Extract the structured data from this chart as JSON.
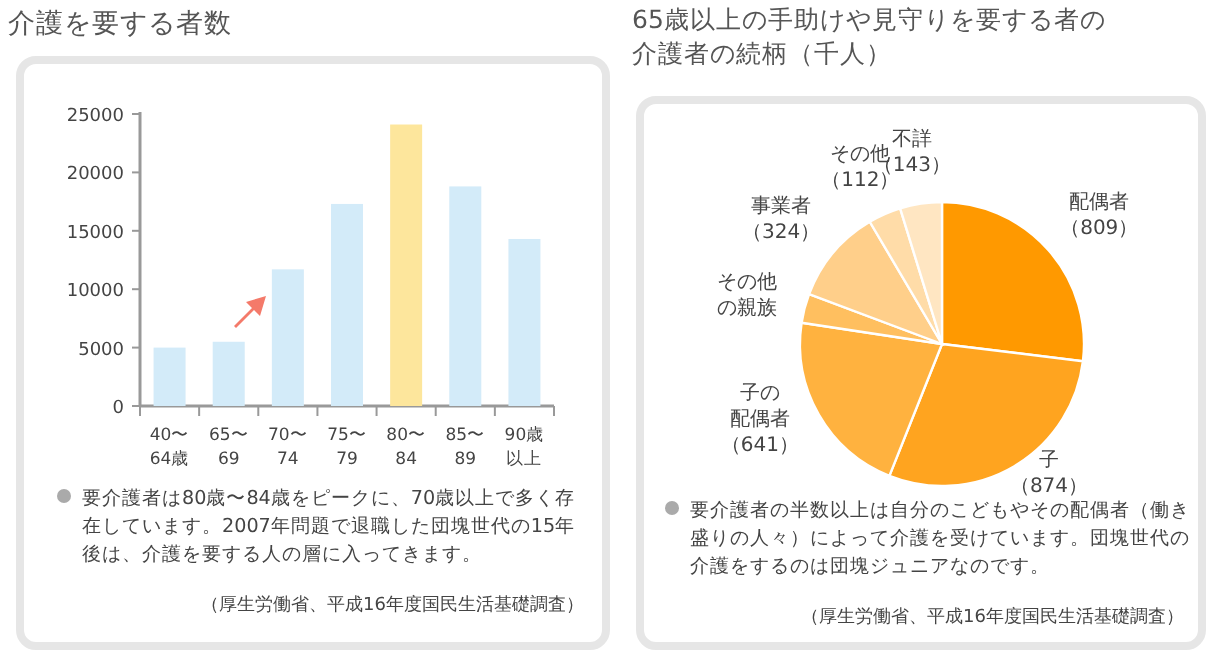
{
  "chart_data": [
    {
      "type": "bar",
      "title": "介護を要する者数",
      "categories": [
        "40〜64歳",
        "65〜69",
        "70〜74",
        "75〜79",
        "80〜84",
        "85〜89",
        "90歳以上"
      ],
      "values": [
        5000,
        5500,
        11700,
        17300,
        24100,
        18800,
        14300
      ],
      "colors": [
        "#d3ebf9",
        "#d3ebf9",
        "#d3ebf9",
        "#d3ebf9",
        "#fde69c",
        "#d3ebf9",
        "#d3ebf9"
      ],
      "ylim": [
        0,
        25000
      ],
      "yticks": [
        0,
        5000,
        10000,
        15000,
        20000,
        25000
      ],
      "grid": false,
      "annotations": [
        "要介護者は80歳〜84歳をピークに、70歳以上で多く存在しています。2007年問題で退職した団塊世代の15年後は、介護を要する人の層に入ってきます。",
        "（厚生労働省、平成16年度国民生活基礎調査）"
      ]
    },
    {
      "type": "pie",
      "title": "65歳以上の手助けや見守りを要する者の介護者の続柄（千人）",
      "categories": [
        "配偶者",
        "子",
        "子の配偶者",
        "その他の親族",
        "事業者",
        "その他",
        "不詳"
      ],
      "values": [
        809,
        874,
        641,
        100,
        324,
        112,
        143
      ],
      "colors": [
        "#ff9900",
        "#ffa41f",
        "#ffb23f",
        "#ffbf5f",
        "#ffcf8a",
        "#ffdca8",
        "#ffe6c2"
      ],
      "value_labels": [
        "（809）",
        "（874）",
        "（641）",
        null,
        "（324）",
        "（112）",
        "（143）"
      ],
      "annotations": [
        "要介護者の半数以上は自分のこどもやその配偶者（働き盛りの人々）によって介護を受けています。団塊世代の介護をするのは団塊ジュニアなのです。",
        "（厚生労働省、平成16年度国民生活基礎調査）"
      ]
    }
  ]
}
